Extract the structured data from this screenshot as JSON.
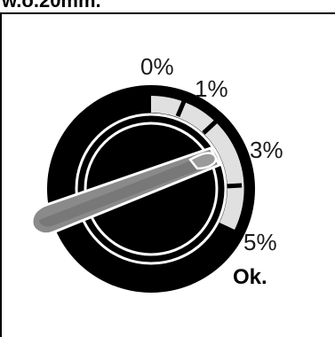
{
  "header": {
    "text": "w.ö.20mm."
  },
  "dial": {
    "labels": {
      "p0": "0%",
      "p1": "1%",
      "p3": "3%",
      "p5": "5%",
      "ok": "Ok."
    },
    "colors": {
      "outer_ring": "#000000",
      "scale_band": "#e0e0e0",
      "knob_face": "#000000",
      "pointer_fill": "#8a8a8a",
      "pointer_edge": "#555555"
    },
    "icon": "dial-knob-icon"
  }
}
